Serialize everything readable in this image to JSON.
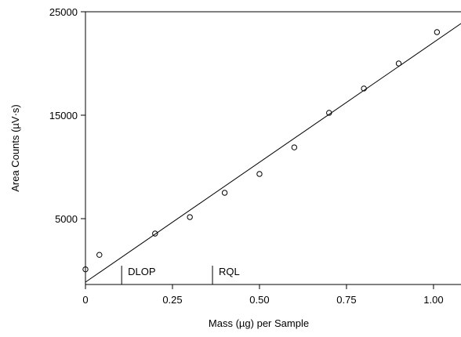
{
  "chart_data": {
    "type": "scatter",
    "xlabel": "Mass (µg) per Sample",
    "ylabel": "Area Counts (µV·s)",
    "xlim": [
      0,
      1.079
    ],
    "ylim": [
      -1364,
      25000
    ],
    "xticks": [
      {
        "value": 0,
        "label": "0"
      },
      0.25,
      {
        "value": 0.5,
        "label": "0.50"
      },
      0.75,
      {
        "value": 1,
        "label": "1.00"
      }
    ],
    "yticks": [
      5000,
      15000,
      25000
    ],
    "series": [
      {
        "type": "scatter",
        "color": "#000000",
        "x": [
          0,
          0.04,
          0.2,
          0.3,
          0.4,
          0.5,
          0.6,
          0.7,
          0.8,
          0.9,
          1.01
        ],
        "values": [
          100,
          1500,
          3560,
          5150,
          7500,
          9320,
          11890,
          15230,
          17580,
          20000,
          23030
        ]
      },
      {
        "type": "line",
        "color": "#000000",
        "x": [
          0,
          1.079
        ],
        "values": [
          -1136,
          23864
        ]
      }
    ],
    "annotations": [
      {
        "label": "DLOP",
        "x": 0.104
      },
      {
        "label": "RQL",
        "x": 0.365
      }
    ]
  }
}
